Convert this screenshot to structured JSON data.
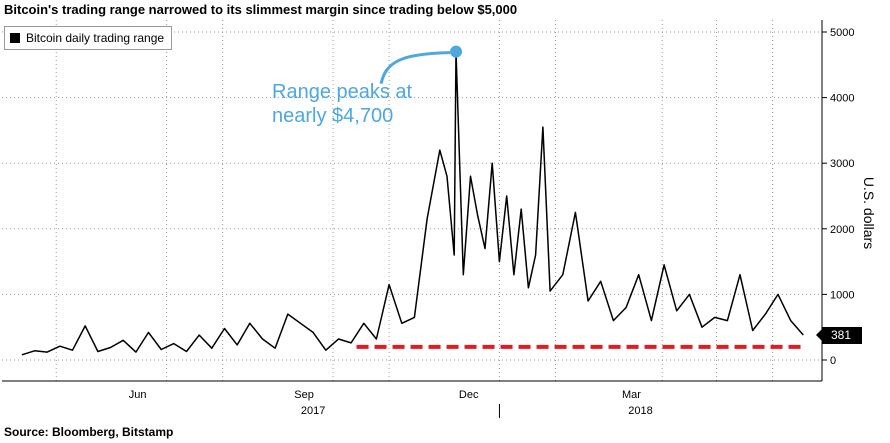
{
  "header": {
    "title": "Bitcoin's trading range narrowed to its slimmest margin since trading below $5,000"
  },
  "footer": {
    "source": "Source: Bloomberg, Bitstamp"
  },
  "annotation": {
    "text": "Range peaks at\nnearly $4,700",
    "color": "#4da8df"
  },
  "last_value": {
    "label": "381"
  },
  "colors": {
    "line": "#000000",
    "threshold": "#e21b23",
    "annotation": "#4da8df",
    "grid": "#9a9a9a"
  },
  "chart_data": {
    "type": "line",
    "title": "Bitcoin's trading range narrowed to its slimmest margin since trading below $5,000",
    "ylabel": "U.S. dollars",
    "ylim": [
      -300,
      5000
    ],
    "yticks": [
      0,
      1000,
      2000,
      3000,
      4000,
      5000
    ],
    "x_month_labels": [
      "Jun",
      "Sep",
      "Dec",
      "Mar"
    ],
    "x_year_labels": [
      "2017",
      "2018"
    ],
    "grid": true,
    "legend": {
      "position": "top-left",
      "entries": [
        "Bitcoin daily trading range"
      ]
    },
    "series": [
      {
        "name": "Bitcoin daily trading range",
        "x": [
          "2017-04-12",
          "2017-04-19",
          "2017-04-26",
          "2017-05-03",
          "2017-05-10",
          "2017-05-17",
          "2017-05-24",
          "2017-05-31",
          "2017-06-07",
          "2017-06-14",
          "2017-06-21",
          "2017-06-28",
          "2017-07-05",
          "2017-07-12",
          "2017-07-19",
          "2017-07-26",
          "2017-08-02",
          "2017-08-09",
          "2017-08-16",
          "2017-08-23",
          "2017-08-30",
          "2017-09-06",
          "2017-09-13",
          "2017-09-20",
          "2017-09-27",
          "2017-10-04",
          "2017-10-11",
          "2017-10-18",
          "2017-10-25",
          "2017-11-01",
          "2017-11-08",
          "2017-11-15",
          "2017-11-22",
          "2017-11-29",
          "2017-12-03",
          "2017-12-07",
          "2017-12-08",
          "2017-12-12",
          "2017-12-16",
          "2017-12-20",
          "2017-12-24",
          "2017-12-28",
          "2018-01-01",
          "2018-01-05",
          "2018-01-09",
          "2018-01-13",
          "2018-01-17",
          "2018-01-21",
          "2018-01-25",
          "2018-01-29",
          "2018-02-05",
          "2018-02-12",
          "2018-02-19",
          "2018-02-26",
          "2018-03-05",
          "2018-03-12",
          "2018-03-19",
          "2018-03-26",
          "2018-04-02",
          "2018-04-09",
          "2018-04-16",
          "2018-04-23",
          "2018-04-30",
          "2018-05-07",
          "2018-05-14",
          "2018-05-21",
          "2018-05-28",
          "2018-06-04",
          "2018-06-11",
          "2018-06-18"
        ],
        "values": [
          80,
          140,
          120,
          210,
          150,
          520,
          130,
          190,
          300,
          120,
          420,
          160,
          250,
          130,
          380,
          180,
          480,
          230,
          560,
          320,
          180,
          700,
          560,
          420,
          150,
          320,
          260,
          560,
          320,
          1150,
          560,
          650,
          2150,
          3200,
          2800,
          1600,
          4700,
          1300,
          2800,
          2200,
          1700,
          3000,
          1500,
          2500,
          1300,
          2300,
          1100,
          1600,
          3550,
          1050,
          1300,
          2250,
          900,
          1200,
          600,
          800,
          1300,
          600,
          1450,
          750,
          1000,
          500,
          650,
          600,
          1300,
          450,
          700,
          1000,
          600,
          381
        ]
      }
    ],
    "reference_line": {
      "label": "",
      "value": 200,
      "from": "2017-10-14",
      "to": "2018-06-18",
      "style": "dashed"
    },
    "peak_annotation": {
      "x": "2017-12-08",
      "y": 4700,
      "text": "Range peaks at\nnearly $4,700"
    },
    "last_value_label": 381
  }
}
